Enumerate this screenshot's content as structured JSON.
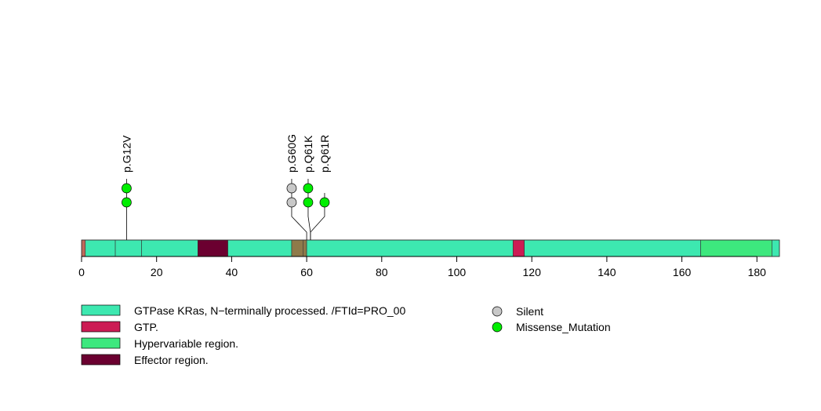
{
  "chart_data": {
    "type": "lollipop",
    "xlim": [
      0,
      186
    ],
    "ticks": [
      0,
      20,
      40,
      60,
      80,
      100,
      120,
      140,
      160,
      180
    ],
    "tick_labels": [
      "0",
      "20",
      "40",
      "60",
      "80",
      "100",
      "120",
      "140",
      "160",
      "180"
    ],
    "protein_length": 186,
    "regions": [
      {
        "start": 0,
        "end": 1,
        "color": "#c0695a"
      },
      {
        "start": 1,
        "end": 9,
        "color": "#3de8b0"
      },
      {
        "start": 9,
        "end": 16,
        "color": "#3de8b0"
      },
      {
        "start": 16,
        "end": 31,
        "color": "#3de8b0"
      },
      {
        "start": 31,
        "end": 39,
        "color": "#6b0030"
      },
      {
        "start": 39,
        "end": 56,
        "color": "#3de8b0"
      },
      {
        "start": 56,
        "end": 59,
        "color": "#8f7a4a"
      },
      {
        "start": 59,
        "end": 60,
        "color": "#8f7a4a"
      },
      {
        "start": 60,
        "end": 115,
        "color": "#3de8b0"
      },
      {
        "start": 115,
        "end": 118,
        "color": "#cc1c54"
      },
      {
        "start": 118,
        "end": 165,
        "color": "#3de8b0"
      },
      {
        "start": 165,
        "end": 184,
        "color": "#3de87e"
      },
      {
        "start": 184,
        "end": 186,
        "color": "#3de8b0"
      }
    ],
    "mutations": [
      {
        "label": "p.G12V",
        "position": 12,
        "count": 2,
        "types": [
          "Missense_Mutation",
          "Missense_Mutation"
        ]
      },
      {
        "label": "p.G60G",
        "position": 60,
        "count": 2,
        "types": [
          "Silent",
          "Silent"
        ]
      },
      {
        "label": "p.Q61K",
        "position": 61,
        "count": 2,
        "types": [
          "Missense_Mutation",
          "Missense_Mutation"
        ]
      },
      {
        "label": "p.Q61R",
        "position": 61,
        "count": 1,
        "types": [
          "Missense_Mutation"
        ]
      }
    ],
    "legend_regions": [
      {
        "label": "GTPase KRas, N−terminally processed. /FTId=PRO_00",
        "color": "#3de8b0"
      },
      {
        "label": "GTP.",
        "color": "#cc1c54"
      },
      {
        "label": "Hypervariable region.",
        "color": "#3de87e"
      },
      {
        "label": "Effector region.",
        "color": "#6b0030"
      }
    ],
    "legend_types": [
      {
        "label": "Silent",
        "color": "#c8c8c8"
      },
      {
        "label": "Missense_Mutation",
        "color": "#00ee00"
      }
    ]
  }
}
